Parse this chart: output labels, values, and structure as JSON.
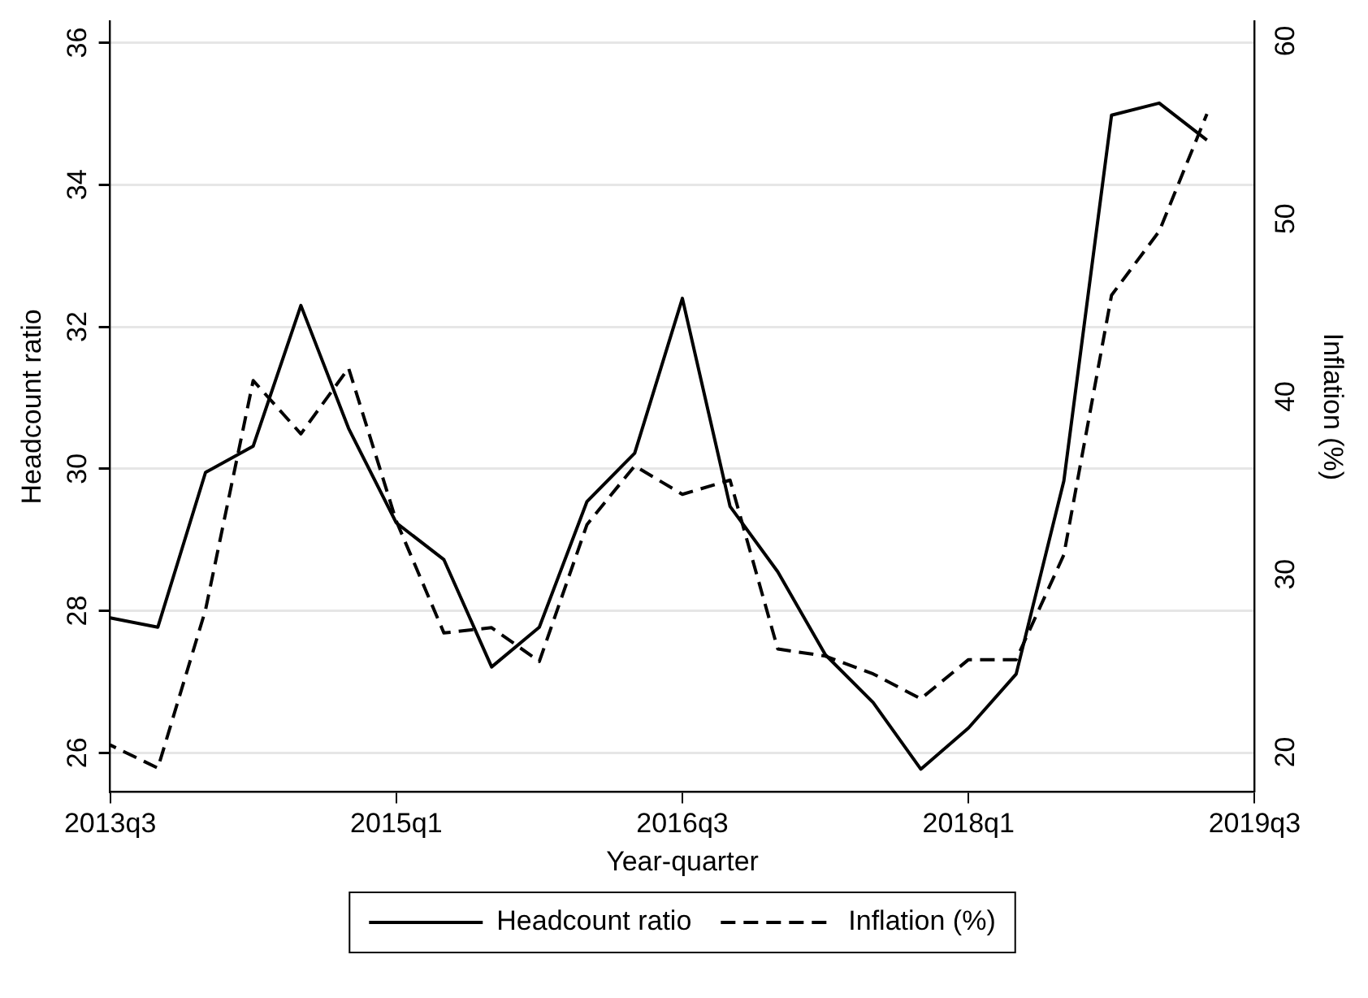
{
  "chart_data": {
    "type": "line",
    "categories": [
      "2013q3",
      null,
      null,
      null,
      null,
      null,
      "2015q1",
      null,
      null,
      null,
      null,
      null,
      "2016q3",
      null,
      null,
      null,
      null,
      null,
      "2018q1",
      null,
      null,
      null,
      null,
      null,
      "2019q3"
    ],
    "series": [
      {
        "name": "Headcount ratio",
        "color": "#000000",
        "line_style": "solid",
        "values": [
          27.9,
          27.77,
          29.95,
          30.32,
          32.3,
          30.57,
          29.24,
          28.72,
          27.21,
          27.77,
          29.54,
          30.22,
          32.4,
          29.47,
          28.55,
          27.38,
          26.71,
          25.77,
          26.35,
          27.11,
          29.83,
          34.98,
          35.15,
          34.63,
          null
        ]
      },
      {
        "name": "Inflation (%)",
        "color": "#000000",
        "line_style": "dashed",
        "axis": "y2",
        "values": [
          20.4,
          19.1,
          28.0,
          40.9,
          37.9,
          41.6,
          33.0,
          26.7,
          27.0,
          25.1,
          32.8,
          36.1,
          34.5,
          35.3,
          25.8,
          25.4,
          24.4,
          23.0,
          25.2,
          25.2,
          31.1,
          45.7,
          49.3,
          55.9,
          null
        ]
      }
    ],
    "xlabel": "Year-quarter",
    "ylabel": "Headcount ratio",
    "y2label": "Inflation (%)",
    "ylim": [
      25.45,
      36.3
    ],
    "yticks": [
      26,
      28,
      30,
      32,
      34,
      36
    ],
    "y2lim": [
      17.76,
      61.1
    ],
    "y2ticks": [
      20,
      30,
      40,
      50,
      60
    ],
    "grid": "y",
    "legend": "bottom",
    "marker": "none"
  }
}
